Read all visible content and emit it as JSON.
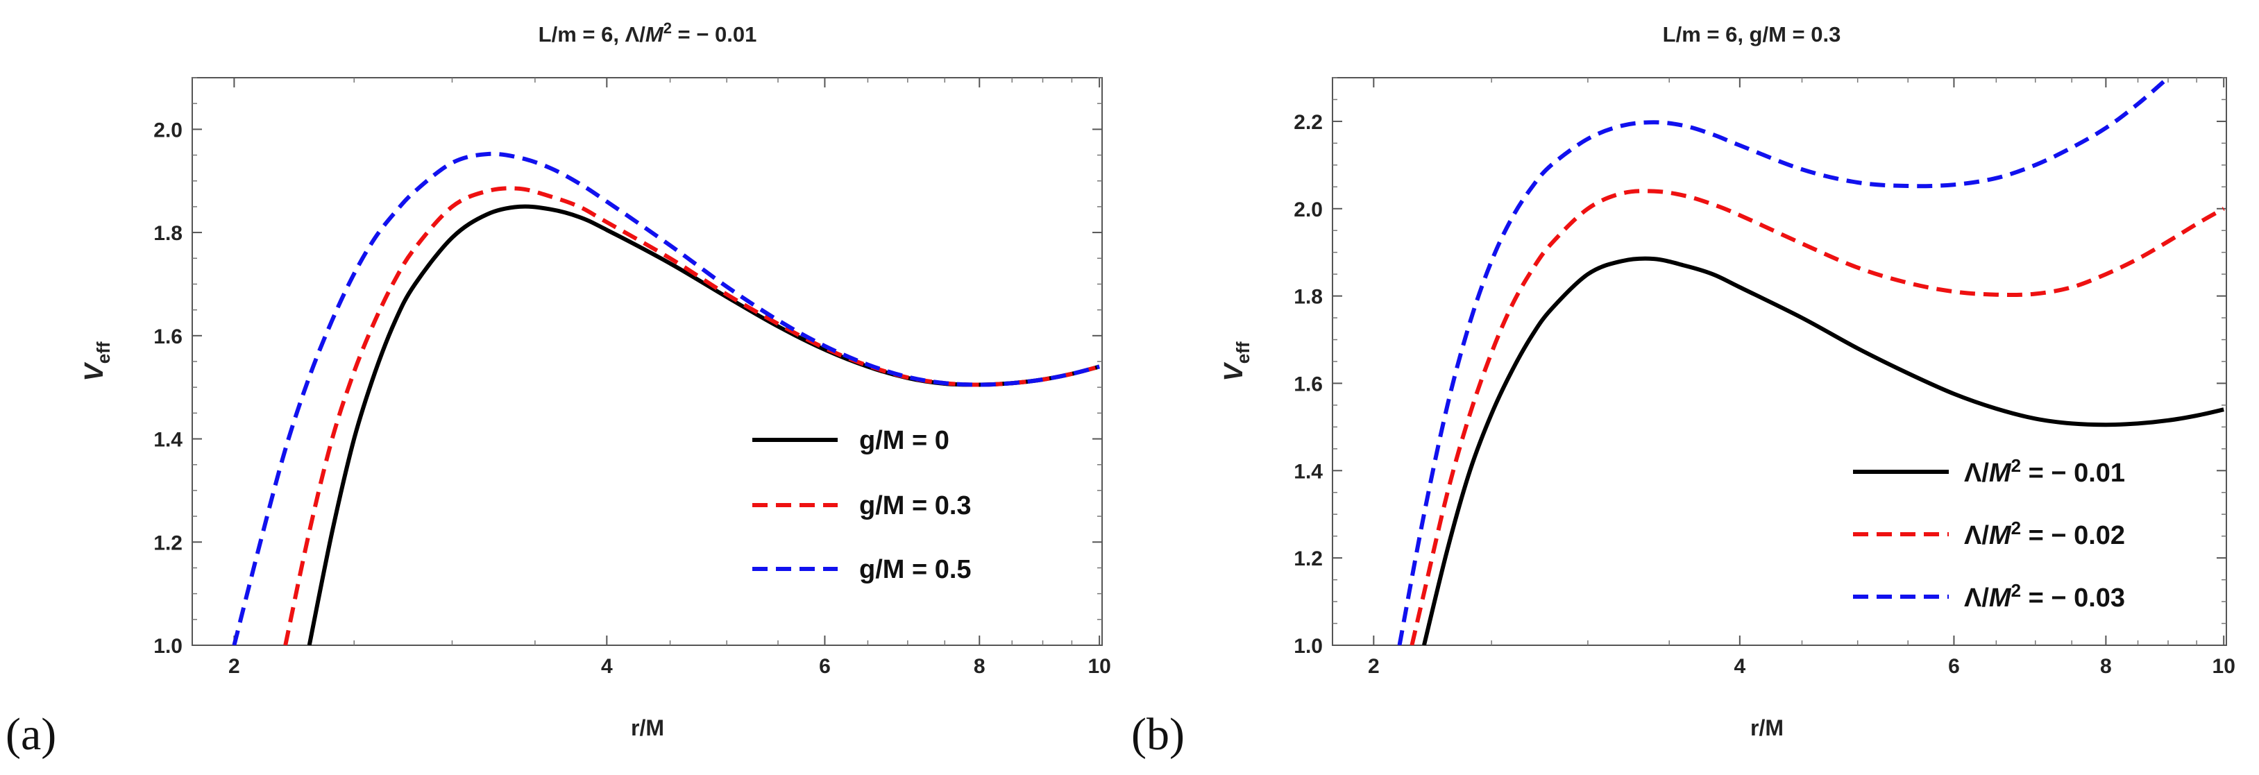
{
  "chart_data": [
    {
      "type": "line",
      "panel_label": "(a)",
      "title": "L/m = 6, Λ/M² = − 0.01",
      "title_parts": {
        "main": "L/m = 6, Λ/",
        "var": "M",
        "sup": "2",
        "tail": " = − 0.01"
      },
      "xlabel": "r/M",
      "ylabel": "V",
      "ylabel_sub": "eff",
      "xlim": [
        1.85,
        10.05
      ],
      "ylim": [
        1.0,
        2.1
      ],
      "xscale": "log",
      "xticks": [
        2,
        4,
        6,
        8,
        10
      ],
      "yticks": [
        1.0,
        1.2,
        1.4,
        1.6,
        1.8,
        2.0
      ],
      "legend_position": "lower-right",
      "series": [
        {
          "name": "g/M = 0",
          "legend_label": "g/M = 0",
          "color": "#000000",
          "dash": "solid",
          "x": [
            2.3,
            2.4,
            2.5,
            2.6,
            2.7,
            2.8,
            3.0,
            3.2,
            3.4,
            3.6,
            3.8,
            4.0,
            4.5,
            5.0,
            5.5,
            6.0,
            6.5,
            7.0,
            7.5,
            8.0,
            8.5,
            9.0,
            9.5,
            10.0
          ],
          "y": [
            1.0,
            1.22,
            1.4,
            1.53,
            1.63,
            1.7,
            1.79,
            1.835,
            1.85,
            1.845,
            1.83,
            1.805,
            1.74,
            1.675,
            1.618,
            1.573,
            1.54,
            1.518,
            1.507,
            1.505,
            1.508,
            1.515,
            1.526,
            1.54
          ]
        },
        {
          "name": "g/M = 0.3",
          "legend_label": "g/M = 0.3",
          "color": "#ee1111",
          "dash": "dashed",
          "x": [
            2.2,
            2.3,
            2.4,
            2.5,
            2.6,
            2.7,
            2.8,
            3.0,
            3.2,
            3.4,
            3.6,
            3.8,
            4.0,
            4.5,
            5.0,
            5.5,
            6.0,
            6.5,
            7.0,
            7.5,
            8.0,
            8.5,
            9.0,
            9.5,
            10.0
          ],
          "y": [
            1.0,
            1.22,
            1.4,
            1.53,
            1.63,
            1.71,
            1.77,
            1.85,
            1.88,
            1.885,
            1.87,
            1.85,
            1.82,
            1.75,
            1.68,
            1.623,
            1.576,
            1.542,
            1.519,
            1.508,
            1.505,
            1.508,
            1.515,
            1.526,
            1.54
          ]
        },
        {
          "name": "g/M = 0.5",
          "legend_label": "g/M = 0.5",
          "color": "#1111ee",
          "dash": "dashed",
          "x": [
            2.0,
            2.1,
            2.2,
            2.3,
            2.4,
            2.5,
            2.6,
            2.7,
            2.8,
            3.0,
            3.2,
            3.4,
            3.6,
            3.8,
            4.0,
            4.5,
            5.0,
            5.5,
            6.0,
            6.5,
            7.0,
            7.5,
            8.0,
            8.5,
            9.0,
            9.5,
            10.0
          ],
          "y": [
            1.0,
            1.2,
            1.38,
            1.52,
            1.63,
            1.72,
            1.79,
            1.84,
            1.88,
            1.935,
            1.952,
            1.945,
            1.925,
            1.895,
            1.86,
            1.775,
            1.695,
            1.63,
            1.58,
            1.544,
            1.52,
            1.508,
            1.505,
            1.508,
            1.515,
            1.526,
            1.54
          ]
        }
      ]
    },
    {
      "type": "line",
      "panel_label": "(b)",
      "title": "L/m = 6, g/M = 0.3",
      "xlabel": "r/M",
      "ylabel": "V",
      "ylabel_sub": "eff",
      "xlim": [
        1.85,
        10.05
      ],
      "ylim": [
        1.0,
        2.3
      ],
      "xscale": "log",
      "xticks": [
        2,
        4,
        6,
        8,
        10
      ],
      "yticks": [
        1.0,
        1.2,
        1.4,
        1.6,
        1.8,
        2.0,
        2.2
      ],
      "legend_position": "lower-right",
      "series": [
        {
          "name": "Λ/M² = − 0.01",
          "legend_main": "Λ/",
          "legend_var": "M",
          "legend_sup": "2",
          "legend_tail": " = − 0.01",
          "color": "#000000",
          "dash": "solid",
          "x": [
            2.2,
            2.3,
            2.4,
            2.5,
            2.6,
            2.7,
            2.8,
            3.0,
            3.2,
            3.4,
            3.6,
            3.8,
            4.0,
            4.5,
            5.0,
            5.5,
            6.0,
            6.5,
            7.0,
            7.5,
            8.0,
            8.5,
            9.0,
            9.5,
            10.0
          ],
          "y": [
            1.0,
            1.22,
            1.4,
            1.53,
            1.63,
            1.71,
            1.77,
            1.85,
            1.88,
            1.885,
            1.87,
            1.85,
            1.82,
            1.75,
            1.68,
            1.623,
            1.576,
            1.542,
            1.519,
            1.508,
            1.505,
            1.508,
            1.515,
            1.526,
            1.54
          ]
        },
        {
          "name": "Λ/M² = − 0.02",
          "legend_main": "Λ/",
          "legend_var": "M",
          "legend_sup": "2",
          "legend_tail": " = − 0.02",
          "color": "#ee1111",
          "dash": "dashed",
          "x": [
            2.15,
            2.2,
            2.3,
            2.4,
            2.5,
            2.6,
            2.7,
            2.8,
            3.0,
            3.2,
            3.4,
            3.6,
            3.8,
            4.0,
            4.5,
            5.0,
            5.5,
            6.0,
            6.5,
            7.0,
            7.5,
            8.0,
            8.5,
            9.0,
            9.5,
            10.0
          ],
          "y": [
            1.0,
            1.12,
            1.35,
            1.53,
            1.67,
            1.78,
            1.86,
            1.92,
            2.0,
            2.035,
            2.04,
            2.03,
            2.01,
            1.985,
            1.92,
            1.865,
            1.83,
            1.81,
            1.803,
            1.805,
            1.82,
            1.85,
            1.885,
            1.925,
            1.965,
            2.0
          ]
        },
        {
          "name": "Λ/M² = − 0.03",
          "legend_main": "Λ/",
          "legend_var": "M",
          "legend_sup": "2",
          "legend_tail": " = − 0.03",
          "color": "#1111ee",
          "dash": "dashed",
          "x": [
            2.1,
            2.2,
            2.3,
            2.4,
            2.5,
            2.6,
            2.7,
            2.8,
            3.0,
            3.2,
            3.4,
            3.6,
            3.8,
            4.0,
            4.5,
            5.0,
            5.5,
            6.0,
            6.5,
            7.0,
            7.5,
            8.0,
            8.5,
            9.0
          ],
          "y": [
            1.0,
            1.3,
            1.55,
            1.74,
            1.88,
            1.98,
            2.05,
            2.1,
            2.16,
            2.19,
            2.198,
            2.19,
            2.17,
            2.145,
            2.09,
            2.06,
            2.052,
            2.055,
            2.07,
            2.1,
            2.14,
            2.185,
            2.24,
            2.3
          ]
        }
      ]
    }
  ]
}
